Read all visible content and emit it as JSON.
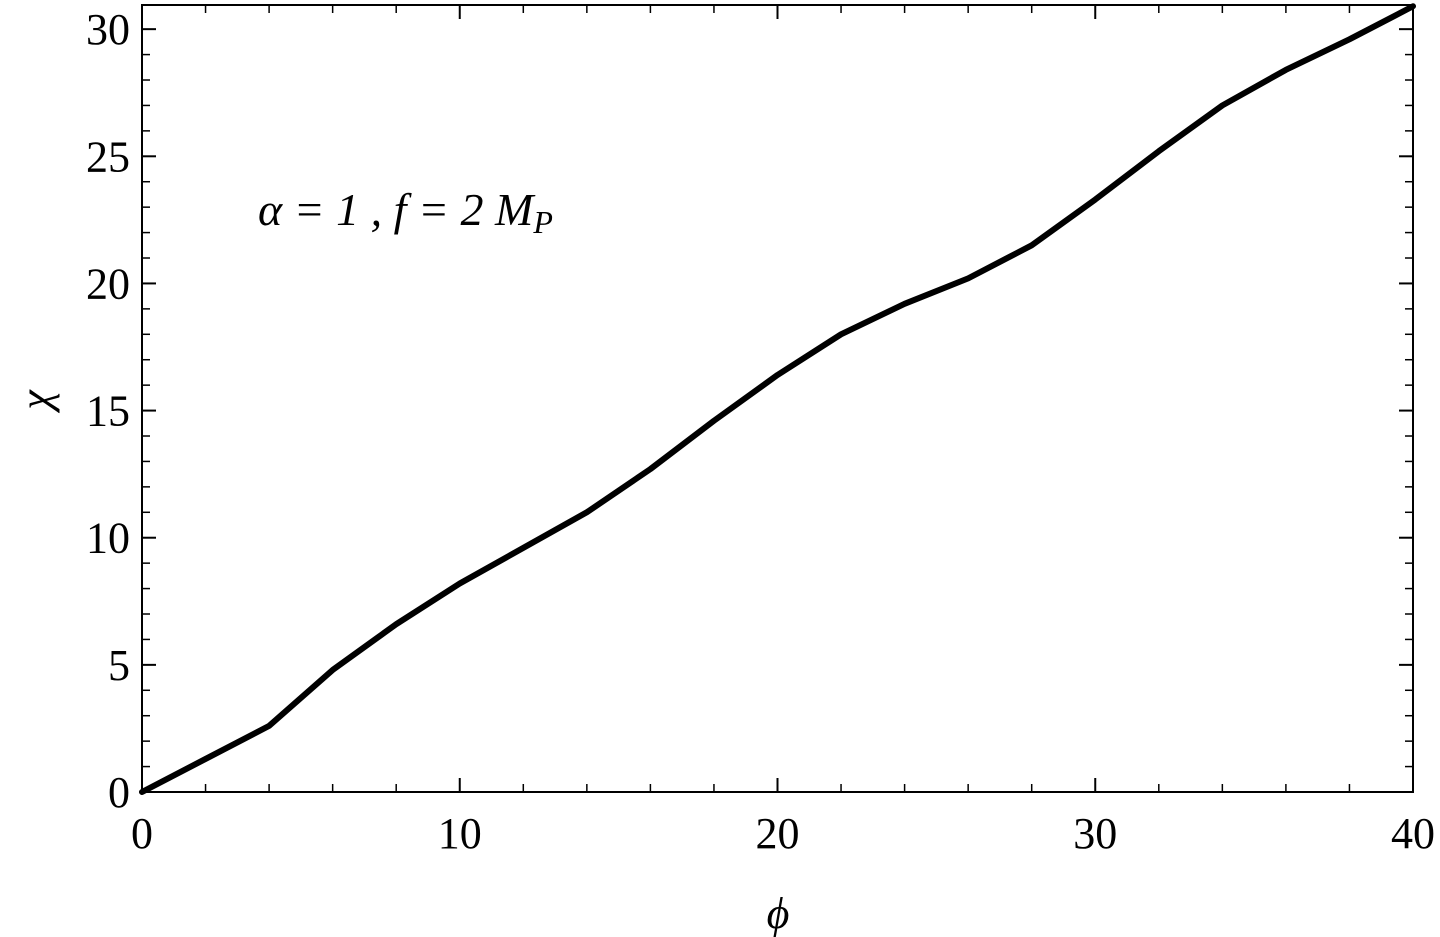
{
  "chart_data": {
    "type": "line",
    "x_label": "ϕ",
    "y_label": "χ",
    "annotation": {
      "text": "α = 1 , f = 2 M",
      "subscript": "P"
    },
    "x": [
      0,
      2,
      4,
      6,
      8,
      10,
      12,
      14,
      16,
      18,
      20,
      22,
      24,
      26,
      28,
      30,
      32,
      34,
      36,
      38,
      40
    ],
    "series": [
      {
        "name": "χ(ϕ)",
        "color": "#000000",
        "values": [
          0,
          1.3,
          2.6,
          4.8,
          6.6,
          8.2,
          9.6,
          11.0,
          12.7,
          14.6,
          16.4,
          18.0,
          19.2,
          20.2,
          21.5,
          23.3,
          25.2,
          27.0,
          28.4,
          29.6,
          30.9
        ]
      }
    ],
    "xlim": [
      0,
      40
    ],
    "xticks": [
      0,
      10,
      20,
      30,
      40
    ],
    "ylim": [
      0,
      30.95
    ],
    "yticks": [
      0,
      5,
      10,
      15,
      20,
      25,
      30
    ],
    "grid": false
  }
}
